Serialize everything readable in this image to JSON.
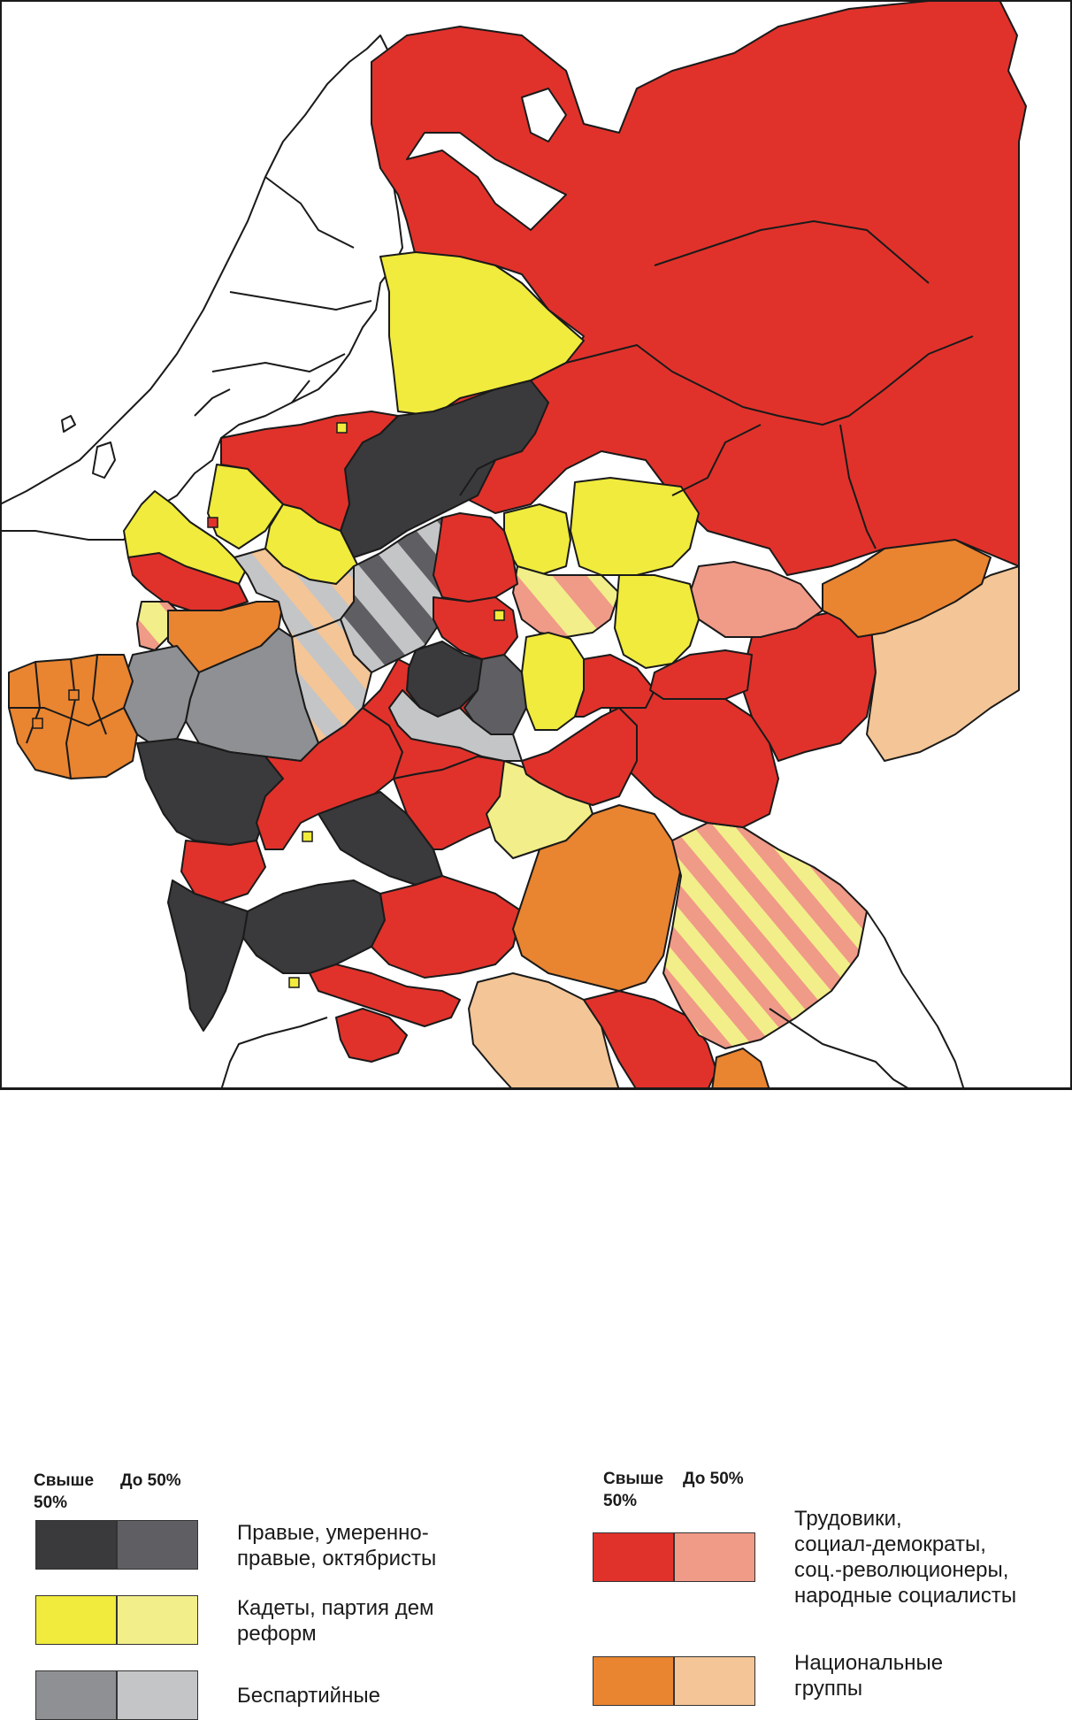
{
  "colors": {
    "right_majority": "#3a393b",
    "right_minority": "#5f5e63",
    "kadet_majority": "#f0eb3c",
    "kadet_minority": "#f2ee8a",
    "nonparty_majority": "#8f9093",
    "nonparty_minority": "#c4c5c7",
    "left_majority": "#e0322b",
    "left_minority": "#f09a88",
    "national_majority": "#e98430",
    "national_minority": "#f4c596",
    "outline": "#1a1a1a",
    "background": "#ffffff"
  },
  "markers": [
    {
      "color": "yellow"
    },
    {
      "color": "red"
    },
    {
      "color": "yellow"
    },
    {
      "color": "yellow"
    },
    {
      "color": "yellow"
    },
    {
      "color": "orange"
    },
    {
      "color": "orange"
    }
  ],
  "legend": {
    "left_header": {
      "over": "Свыше",
      "over_pct": "50%",
      "under": "До 50%"
    },
    "right_header": {
      "over": "Свыше",
      "over_pct": "50%",
      "under": "До 50%"
    },
    "items_left": [
      {
        "label": "Правые, умеренно-\nправые, октябристы",
        "key": "right"
      },
      {
        "label": "Кадеты, партия дем\nреформ",
        "key": "kadet"
      },
      {
        "label": "Беспартийные",
        "key": "nonparty"
      }
    ],
    "items_right": [
      {
        "label": "Трудовики,\nсоциал-демократы,\nсоц.-революционеры,\nнародные социалисты",
        "key": "left"
      },
      {
        "label": "Национальные\nгруппы",
        "key": "national"
      }
    ]
  }
}
